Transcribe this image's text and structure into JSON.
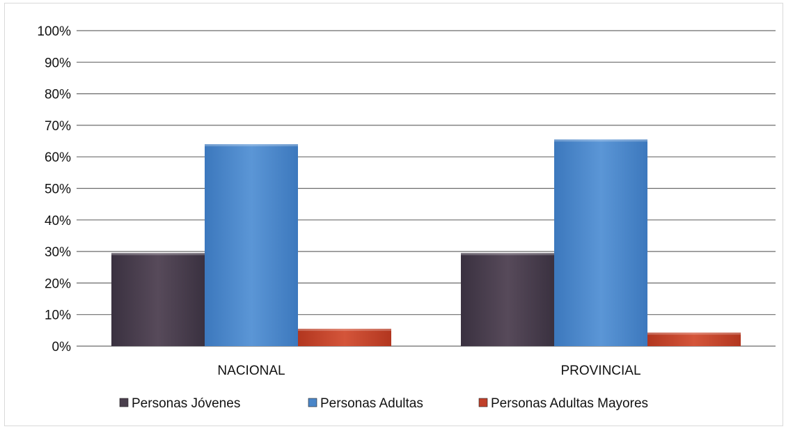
{
  "chart_data": {
    "type": "bar",
    "categories": [
      "NACIONAL",
      "PROVINCIAL"
    ],
    "series": [
      {
        "name": "Personas Jóvenes",
        "values": [
          29.5,
          29.5
        ],
        "color": "#4a3f4d"
      },
      {
        "name": "Personas Adultas",
        "values": [
          64,
          65.5
        ],
        "color": "#4a86c8"
      },
      {
        "name": "Personas Adultas Mayores",
        "values": [
          5.5,
          4.3
        ],
        "color": "#c0402a"
      }
    ],
    "ylim": [
      0,
      100
    ],
    "yticks": [
      "0%",
      "10%",
      "20%",
      "30%",
      "40%",
      "50%",
      "60%",
      "70%",
      "80%",
      "90%",
      "100%"
    ],
    "grid": true,
    "legend": "bottom"
  }
}
